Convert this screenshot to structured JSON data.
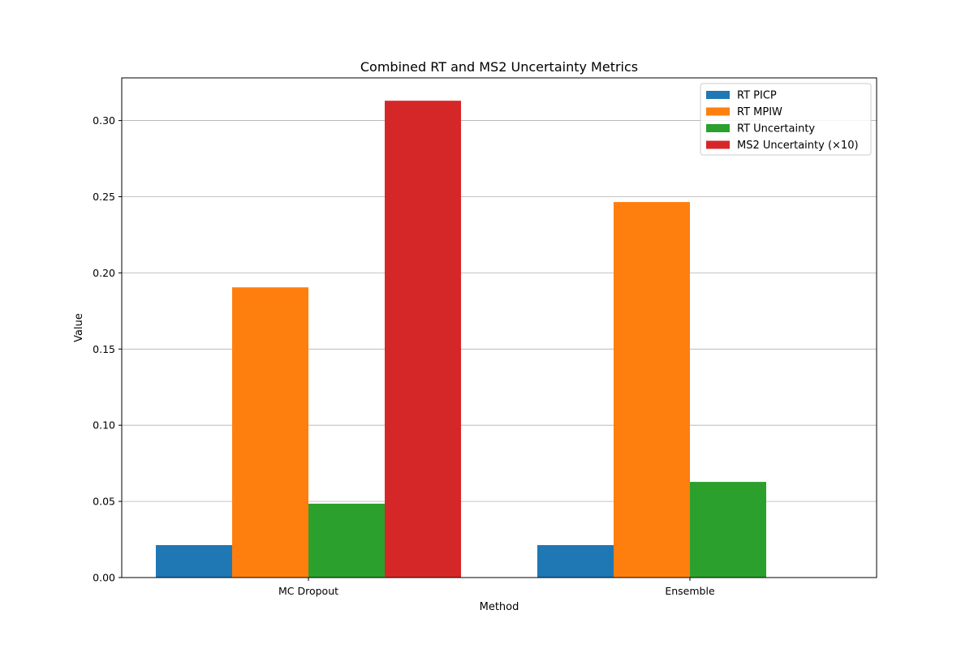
{
  "chart_data": {
    "type": "bar",
    "title": "Combined RT and MS2 Uncertainty Metrics",
    "xlabel": "Method",
    "ylabel": "Value",
    "categories": [
      "MC Dropout",
      "Ensemble"
    ],
    "ylim": [
      0,
      0.328
    ],
    "yticks": [
      0.0,
      0.05,
      0.1,
      0.15,
      0.2,
      0.25,
      0.3
    ],
    "ytick_labels": [
      "0.00",
      "0.05",
      "0.10",
      "0.15",
      "0.20",
      "0.25",
      "0.30"
    ],
    "grid": "horizontal",
    "legend_position": "top-right",
    "series": [
      {
        "name": "RT PICP",
        "color": "#1f77b4",
        "values": [
          0.0213,
          0.0213
        ]
      },
      {
        "name": "RT MPIW",
        "color": "#ff7f0e",
        "values": [
          0.1905,
          0.2465
        ]
      },
      {
        "name": "RT Uncertainty",
        "color": "#2ca02c",
        "values": [
          0.0485,
          0.0628
        ]
      },
      {
        "name": "MS2 Uncertainty (×10)",
        "color": "#d62728",
        "values": [
          0.313,
          0
        ]
      }
    ]
  }
}
